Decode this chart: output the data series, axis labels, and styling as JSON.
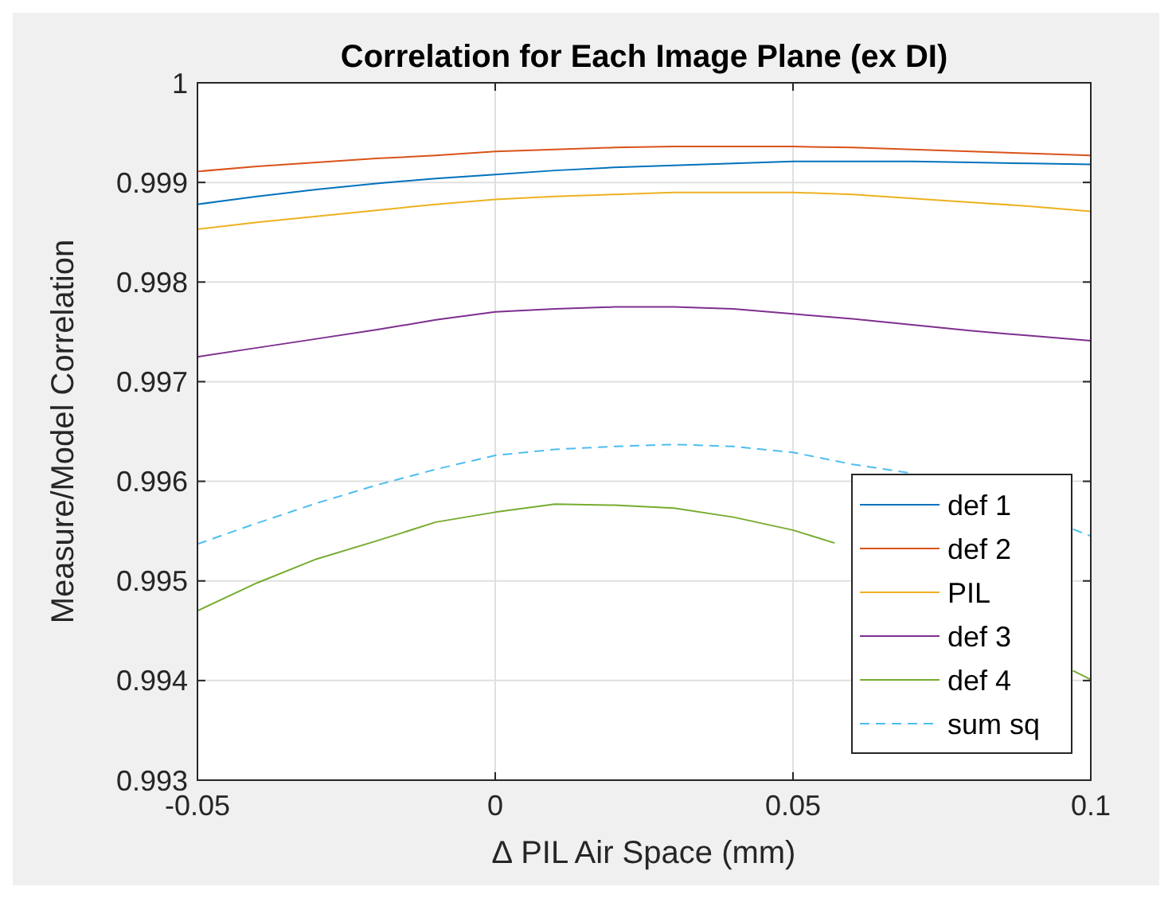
{
  "chart_data": {
    "type": "line",
    "title": "Correlation for Each Image Plane (ex DI)",
    "xlabel": "∆ PIL Air Space (mm)",
    "ylabel": "Measure/Model Correlation",
    "x": [
      -0.05,
      -0.04,
      -0.03,
      -0.02,
      -0.01,
      0,
      0.01,
      0.02,
      0.03,
      0.04,
      0.05,
      0.06,
      0.07,
      0.08,
      0.09,
      0.1
    ],
    "series": [
      {
        "name": "def 1",
        "color": "#0072bd",
        "values": [
          0.99878,
          0.99886,
          0.99893,
          0.99899,
          0.99904,
          0.99908,
          0.99912,
          0.99915,
          0.99917,
          0.99919,
          0.99921,
          0.99921,
          0.99921,
          0.9992,
          0.99919,
          0.99918
        ]
      },
      {
        "name": "def 2",
        "color": "#d95319",
        "values": [
          0.99911,
          0.99916,
          0.9992,
          0.99924,
          0.99927,
          0.99931,
          0.99933,
          0.99935,
          0.99936,
          0.99936,
          0.99936,
          0.99935,
          0.99933,
          0.99931,
          0.99929,
          0.99927
        ]
      },
      {
        "name": "PIL",
        "color": "#edb120",
        "values": [
          0.99853,
          0.9986,
          0.99866,
          0.99872,
          0.99878,
          0.99883,
          0.99886,
          0.99888,
          0.9989,
          0.9989,
          0.9989,
          0.99888,
          0.99884,
          0.9988,
          0.99876,
          0.99871
        ]
      },
      {
        "name": "def 3",
        "color": "#7e2f8e",
        "values": [
          0.99725,
          0.99734,
          0.99743,
          0.99752,
          0.99762,
          0.9977,
          0.99773,
          0.99775,
          0.99775,
          0.99773,
          0.99768,
          0.99763,
          0.99757,
          0.99751,
          0.99746,
          0.99741
        ]
      },
      {
        "name": "def 4",
        "color": "#77ac30",
        "x": [
          -0.05,
          -0.04,
          -0.03,
          -0.02,
          -0.01,
          0,
          0.01,
          0.02,
          0.03,
          0.04,
          0.05,
          0.057,
          0.08,
          0.097,
          0.1
        ],
        "values": [
          0.9947,
          0.99498,
          0.99522,
          0.9954,
          0.99559,
          0.99569,
          0.99577,
          0.99576,
          0.99573,
          0.99564,
          0.99551,
          0.99538,
          null,
          0.9941,
          0.99401
        ]
      },
      {
        "name": "sum sq",
        "color": "#4dbeee",
        "line_style": "dashed",
        "x": [
          -0.05,
          -0.04,
          -0.03,
          -0.02,
          -0.01,
          0,
          0.01,
          0.02,
          0.03,
          0.04,
          0.05,
          0.06,
          0.07,
          0.08,
          0.097,
          0.1
        ],
        "values": [
          0.99537,
          0.99558,
          0.99578,
          0.99596,
          0.99612,
          0.99626,
          0.99632,
          0.99635,
          0.99637,
          0.99635,
          0.99629,
          0.99617,
          0.99608,
          null,
          0.99552,
          0.99545
        ]
      }
    ],
    "xlim": [
      -0.05,
      0.1
    ],
    "xticks": [
      -0.05,
      0,
      0.05,
      0.1
    ],
    "ylim": [
      0.993,
      1
    ],
    "yticks": [
      0.993,
      0.994,
      0.995,
      0.996,
      0.997,
      0.998,
      0.999,
      1
    ],
    "grid": true,
    "legend": "bottom right",
    "marker": "none",
    "line_style": "solid"
  }
}
